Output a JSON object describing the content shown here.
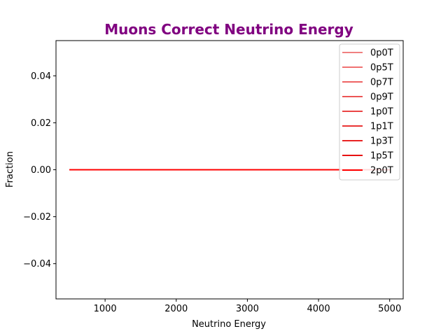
{
  "chart_data": {
    "type": "line",
    "title": "Muons Correct Neutrino Energy",
    "title_color": "#800080",
    "xlabel": "Neutrino Energy",
    "ylabel": "Fraction",
    "xlim": [
      310,
      5190
    ],
    "ylim": [
      -0.055,
      0.055
    ],
    "xticks": [
      1000,
      2000,
      3000,
      4000,
      5000
    ],
    "yticks": [
      -0.04,
      -0.02,
      0.0,
      0.02,
      0.04
    ],
    "ytick_labels": [
      "−0.04",
      "−0.02",
      "0.00",
      "0.02",
      "0.04"
    ],
    "grid": false,
    "legend_placement": "top-right",
    "series": [
      {
        "name": "0p0T",
        "color": "#f08080",
        "x": [
          500,
          5000
        ],
        "y": [
          0,
          0
        ]
      },
      {
        "name": "0p5T",
        "color": "#f07272",
        "x": [
          500,
          5000
        ],
        "y": [
          0,
          0
        ]
      },
      {
        "name": "0p7T",
        "color": "#ee6464",
        "x": [
          500,
          5000
        ],
        "y": [
          0,
          0
        ]
      },
      {
        "name": "0p9T",
        "color": "#ec5555",
        "x": [
          500,
          5000
        ],
        "y": [
          0,
          0
        ]
      },
      {
        "name": "1p0T",
        "color": "#ea4545",
        "x": [
          500,
          5000
        ],
        "y": [
          0,
          0
        ]
      },
      {
        "name": "1p1T",
        "color": "#e93434",
        "x": [
          500,
          5000
        ],
        "y": [
          0,
          0
        ]
      },
      {
        "name": "1p3T",
        "color": "#e82323",
        "x": [
          500,
          5000
        ],
        "y": [
          0,
          0
        ]
      },
      {
        "name": "1p5T",
        "color": "#e71111",
        "x": [
          500,
          5000
        ],
        "y": [
          0,
          0
        ]
      },
      {
        "name": "2p0T",
        "color": "#ff0000",
        "x": [
          500,
          5000
        ],
        "y": [
          0,
          0
        ]
      }
    ]
  }
}
